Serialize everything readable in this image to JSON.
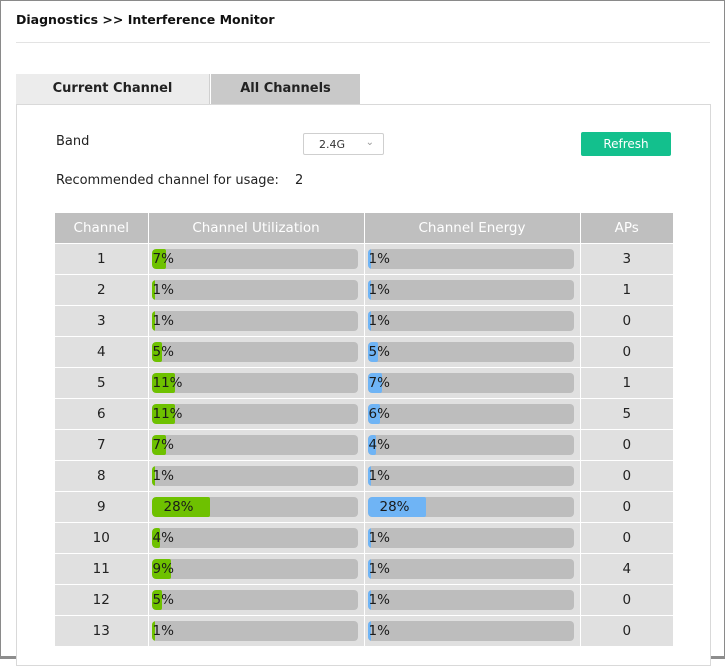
{
  "page_title": "Diagnostics >> Interference Monitor",
  "tabs": [
    {
      "label": "Current Channel",
      "active": true
    },
    {
      "label": "All Channels",
      "active": false
    }
  ],
  "band": {
    "label": "Band",
    "selected": "2.4G",
    "chevron_icon": "chevron-down-icon"
  },
  "refresh_label": "Refresh",
  "recommended": {
    "label": "Recommended channel for usage:",
    "value": "2"
  },
  "colors": {
    "utilization": "#6ec100",
    "energy": "#6fb4f5",
    "track": "#bdbdbd",
    "header": "#bfbfbf",
    "refresh": "#13c08d"
  },
  "table": {
    "headers": [
      "Channel",
      "Channel Utilization",
      "Channel Energy",
      "APs"
    ],
    "rows": [
      {
        "channel": "1",
        "utilization": 7,
        "energy": 1,
        "aps": "3"
      },
      {
        "channel": "2",
        "utilization": 1,
        "energy": 1,
        "aps": "1"
      },
      {
        "channel": "3",
        "utilization": 1,
        "energy": 1,
        "aps": "0"
      },
      {
        "channel": "4",
        "utilization": 5,
        "energy": 5,
        "aps": "0"
      },
      {
        "channel": "5",
        "utilization": 11,
        "energy": 7,
        "aps": "1"
      },
      {
        "channel": "6",
        "utilization": 11,
        "energy": 6,
        "aps": "5"
      },
      {
        "channel": "7",
        "utilization": 7,
        "energy": 4,
        "aps": "0"
      },
      {
        "channel": "8",
        "utilization": 1,
        "energy": 1,
        "aps": "0"
      },
      {
        "channel": "9",
        "utilization": 28,
        "energy": 28,
        "aps": "0"
      },
      {
        "channel": "10",
        "utilization": 4,
        "energy": 1,
        "aps": "0"
      },
      {
        "channel": "11",
        "utilization": 9,
        "energy": 1,
        "aps": "4"
      },
      {
        "channel": "12",
        "utilization": 5,
        "energy": 1,
        "aps": "0"
      },
      {
        "channel": "13",
        "utilization": 1,
        "energy": 1,
        "aps": "0"
      }
    ]
  }
}
